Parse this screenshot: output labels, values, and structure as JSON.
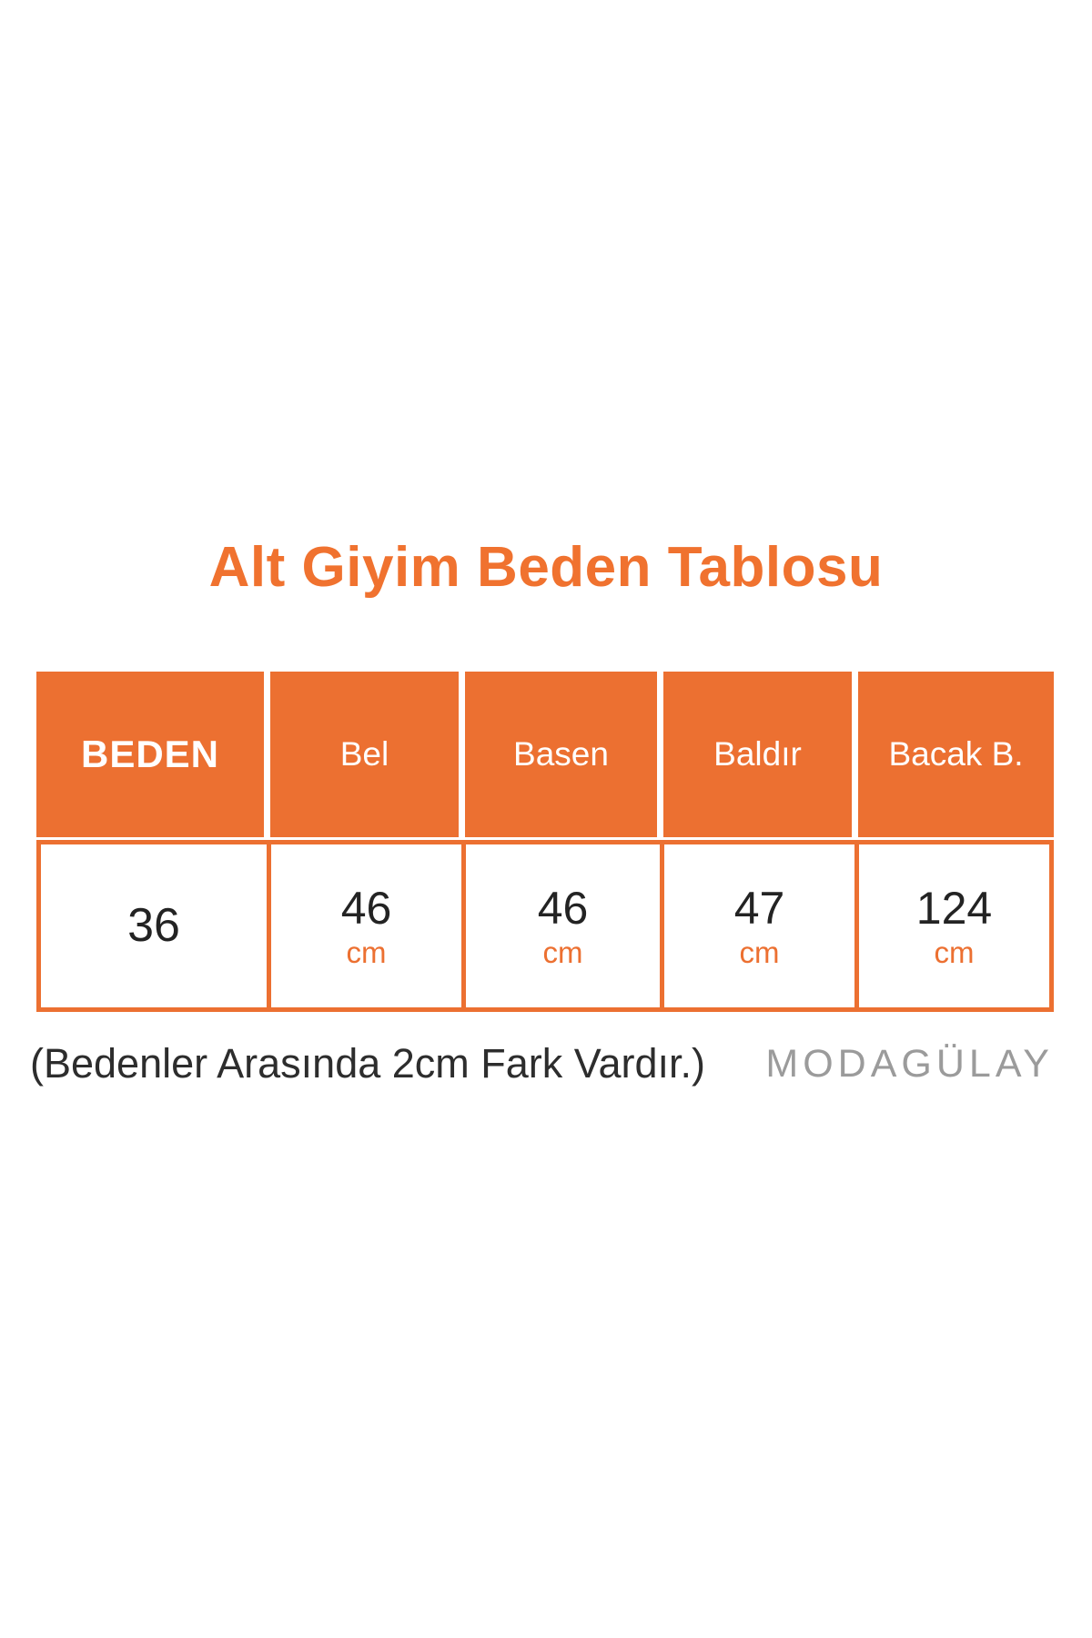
{
  "page": {
    "title": "Alt Giyim Beden Tablosu",
    "note": "(Bedenler Arasında 2cm Fark Vardır.)",
    "brand": "MODAGÜLAY"
  },
  "colors": {
    "accent_orange": "#EC7031",
    "title_orange": "#F0722F",
    "header_text_white": "#FFFFFF",
    "value_text_dark": "#232323",
    "note_text_dark": "#2D2D2D",
    "brand_gray": "#9B9B9B"
  },
  "size_table": {
    "columns": [
      "BEDEN",
      "Bel",
      "Basen",
      "Baldır",
      "Bacak B."
    ],
    "rows": [
      {
        "cells": [
          {
            "value": "36",
            "unit": ""
          },
          {
            "value": "46",
            "unit": "cm"
          },
          {
            "value": "46",
            "unit": "cm"
          },
          {
            "value": "47",
            "unit": "cm"
          },
          {
            "value": "124",
            "unit": "cm"
          }
        ]
      }
    ]
  }
}
